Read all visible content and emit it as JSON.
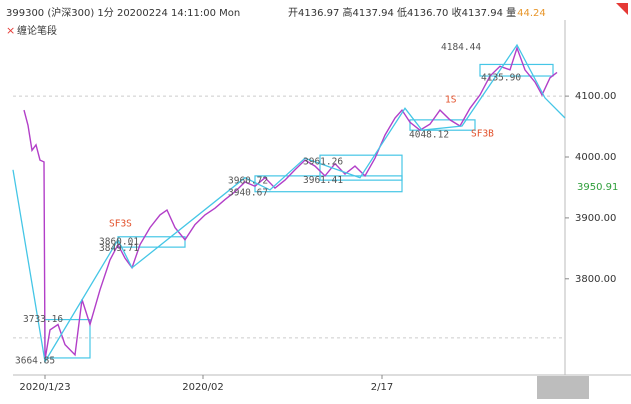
{
  "chart_data": {
    "type": "line",
    "title": "399300 (沪深300) 1分 20200224 14:11:00 Mon",
    "ohlc": "开4136.97 高4137.94 低4136.70 收4137.94 量",
    "volume": "44.24",
    "xlim": [
      0,
      552
    ],
    "ylim": [
      3642,
      4225
    ],
    "yticks": [
      {
        "value": 4100,
        "label": "4100.00"
      },
      {
        "value": 4000,
        "label": "4000.00"
      },
      {
        "value": 3900,
        "label": "3900.00"
      },
      {
        "value": 3800,
        "label": "3800.00"
      }
    ],
    "xticks": [
      {
        "value": 32,
        "label": "2020/1/23"
      },
      {
        "value": 190,
        "label": "2020/02"
      },
      {
        "value": 369,
        "label": "2/17"
      }
    ],
    "last_price": {
      "value": 3950.91,
      "label": "3950.91",
      "color": "#2e9e3a"
    },
    "hlines": [
      4100,
      3703
    ],
    "series": [
      {
        "color": "#b23fc8",
        "x": [
          11,
          15,
          19,
          23,
          27,
          31,
          32,
          37,
          45,
          52,
          62,
          69,
          77,
          87,
          97,
          105,
          112,
          119,
          127,
          137,
          147,
          154,
          162,
          172,
          182,
          192,
          202,
          212,
          222,
          232,
          242,
          252,
          262,
          272,
          282,
          292,
          302,
          312,
          322,
          332,
          342,
          352,
          362,
          372,
          382,
          389,
          397,
          407,
          417,
          427,
          437,
          447,
          457,
          467,
          477,
          487,
          497,
          504,
          512,
          522,
          529,
          537,
          544
        ],
        "values": [
          4077,
          4052,
          4011,
          4020,
          3995,
          3992,
          3667,
          3716,
          3725,
          3692,
          3675,
          3766,
          3725,
          3782,
          3831,
          3856,
          3834,
          3818,
          3856,
          3884,
          3905,
          3913,
          3884,
          3864,
          3889,
          3905,
          3916,
          3930,
          3943,
          3959,
          3952,
          3966,
          3949,
          3962,
          3979,
          3995,
          3985,
          3969,
          3989,
          3972,
          3985,
          3969,
          3998,
          4036,
          4064,
          4077,
          4057,
          4044,
          4054,
          4077,
          4061,
          4051,
          4080,
          4102,
          4133,
          4149,
          4143,
          4179,
          4143,
          4123,
          4102,
          4130,
          4139
        ]
      },
      {
        "name": "缠论笔段",
        "color": "#45c6e6",
        "x": [
          0,
          32,
          105,
          119,
          232,
          257,
          292,
          347,
          392,
          409,
          449,
          504,
          532,
          552
        ],
        "values": [
          3979,
          3664,
          3864,
          3818,
          3966,
          3946,
          3998,
          3966,
          4080,
          4044,
          4051,
          4184,
          4097,
          4064
        ]
      }
    ],
    "boxes": [
      {
        "x0": 32,
        "x1": 77,
        "low": 3670,
        "high": 3733
      },
      {
        "x0": 105,
        "x1": 172,
        "low": 3852,
        "high": 3869
      },
      {
        "x0": 242,
        "x1": 389,
        "low": 3943,
        "high": 3969
      },
      {
        "x0": 307,
        "x1": 389,
        "low": 3962,
        "high": 4003
      },
      {
        "x0": 397,
        "x1": 462,
        "low": 4044,
        "high": 4061
      },
      {
        "x0": 467,
        "x1": 540,
        "low": 4133,
        "high": 4152
      }
    ],
    "annotations": [
      {
        "label": "3664.85",
        "x": 2,
        "value": 3664.85
      },
      {
        "label": "3733.16",
        "x": 10,
        "value": 3733.16
      },
      {
        "label": "3860.01",
        "x": 86,
        "value": 3860.01
      },
      {
        "label": "3849.71",
        "x": 86,
        "value": 3849.71
      },
      {
        "label": "SF3S",
        "x": 96,
        "value": 3890,
        "signal": true
      },
      {
        "label": "3960.72",
        "x": 215,
        "value": 3960.72
      },
      {
        "label": "3940.67",
        "x": 215,
        "value": 3940.67
      },
      {
        "label": "3961.26",
        "x": 290,
        "value": 3992
      },
      {
        "label": "3961.41",
        "x": 290,
        "value": 3961.41
      },
      {
        "label": "1S",
        "x": 432,
        "value": 4094,
        "signal": true
      },
      {
        "label": "4048.12",
        "x": 396,
        "value": 4036
      },
      {
        "label": "SF3B",
        "x": 458,
        "value": 4038,
        "signal": true
      },
      {
        "label": "4184.44",
        "x": 428,
        "value": 4180
      },
      {
        "label": "4135.90",
        "x": 468,
        "value": 4130
      }
    ]
  }
}
